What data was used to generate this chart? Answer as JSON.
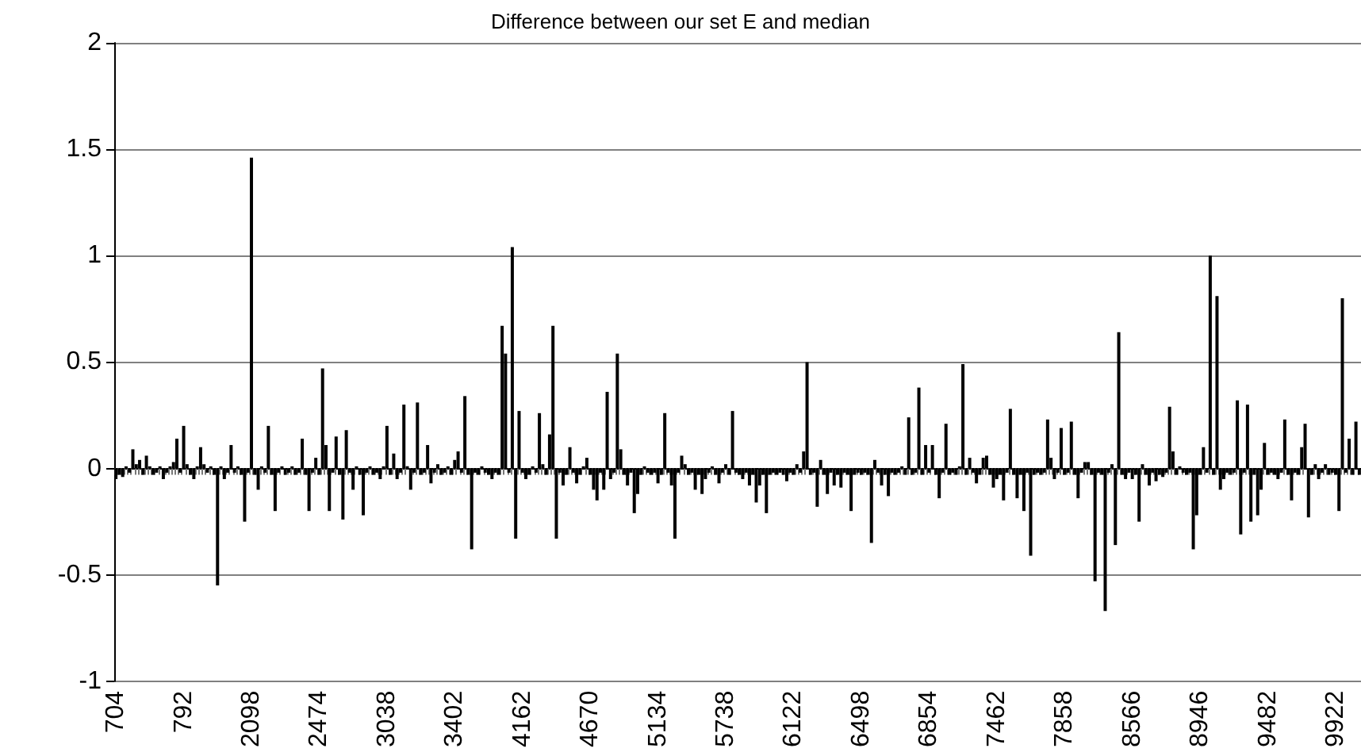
{
  "chart_data": {
    "type": "bar",
    "title": "Difference between our set E and median",
    "categories": [
      "704",
      null,
      null,
      null,
      null,
      null,
      null,
      null,
      null,
      null,
      null,
      null,
      null,
      null,
      null,
      null,
      null,
      null,
      null,
      null,
      "792",
      null,
      null,
      null,
      null,
      null,
      null,
      null,
      null,
      null,
      null,
      null,
      null,
      null,
      null,
      null,
      null,
      null,
      null,
      null,
      "2098",
      null,
      null,
      null,
      null,
      null,
      null,
      null,
      null,
      null,
      null,
      null,
      null,
      null,
      null,
      null,
      null,
      null,
      null,
      null,
      "2474",
      null,
      null,
      null,
      null,
      null,
      null,
      null,
      null,
      null,
      null,
      null,
      null,
      null,
      null,
      null,
      null,
      null,
      null,
      null,
      "3038",
      null,
      null,
      null,
      null,
      null,
      null,
      null,
      null,
      null,
      null,
      null,
      null,
      null,
      null,
      null,
      null,
      null,
      null,
      null,
      "3402",
      null,
      null,
      null,
      null,
      null,
      null,
      null,
      null,
      null,
      null,
      null,
      null,
      null,
      null,
      null,
      null,
      null,
      null,
      null,
      "4162",
      null,
      null,
      null,
      null,
      null,
      null,
      null,
      null,
      null,
      null,
      null,
      null,
      null,
      null,
      null,
      null,
      null,
      null,
      null,
      "4670",
      null,
      null,
      null,
      null,
      null,
      null,
      null,
      null,
      null,
      null,
      null,
      null,
      null,
      null,
      null,
      null,
      null,
      null,
      null,
      "5134",
      null,
      null,
      null,
      null,
      null,
      null,
      null,
      null,
      null,
      null,
      null,
      null,
      null,
      null,
      null,
      null,
      null,
      null,
      null,
      "5738",
      null,
      null,
      null,
      null,
      null,
      null,
      null,
      null,
      null,
      null,
      null,
      null,
      null,
      null,
      null,
      null,
      null,
      null,
      null,
      "6122",
      null,
      null,
      null,
      null,
      null,
      null,
      null,
      null,
      null,
      null,
      null,
      null,
      null,
      null,
      null,
      null,
      null,
      null,
      null,
      "6498",
      null,
      null,
      null,
      null,
      null,
      null,
      null,
      null,
      null,
      null,
      null,
      null,
      null,
      null,
      null,
      null,
      null,
      null,
      null,
      "6854",
      null,
      null,
      null,
      null,
      null,
      null,
      null,
      null,
      null,
      null,
      null,
      null,
      null,
      null,
      null,
      null,
      null,
      null,
      null,
      "7462",
      null,
      null,
      null,
      null,
      null,
      null,
      null,
      null,
      null,
      null,
      null,
      null,
      null,
      null,
      null,
      null,
      null,
      null,
      null,
      "7858",
      null,
      null,
      null,
      null,
      null,
      null,
      null,
      null,
      null,
      null,
      null,
      null,
      null,
      null,
      null,
      null,
      null,
      null,
      null,
      "8566",
      null,
      null,
      null,
      null,
      null,
      null,
      null,
      null,
      null,
      null,
      null,
      null,
      null,
      null,
      null,
      null,
      null,
      null,
      null,
      "8946",
      null,
      null,
      null,
      null,
      null,
      null,
      null,
      null,
      null,
      null,
      null,
      null,
      null,
      null,
      null,
      null,
      null,
      null,
      null,
      "9482",
      null,
      null,
      null,
      null,
      null,
      null,
      null,
      null,
      null,
      null,
      null,
      null,
      null,
      null,
      null,
      null,
      null,
      null,
      null,
      "9922",
      null,
      null,
      null,
      null,
      null,
      null,
      null
    ],
    "values": [
      -0.05,
      -0.03,
      -0.04,
      0.01,
      -0.02,
      0.09,
      0.02,
      0.04,
      -0.03,
      0.06,
      0.01,
      -0.03,
      -0.02,
      0.01,
      -0.05,
      -0.02,
      0.01,
      0.03,
      0.14,
      -0.02,
      0.2,
      0.02,
      -0.03,
      -0.05,
      0.01,
      0.1,
      0.02,
      -0.02,
      0.01,
      -0.03,
      -0.55,
      0.01,
      -0.05,
      -0.02,
      0.11,
      -0.02,
      0.01,
      -0.03,
      -0.25,
      -0.02,
      1.46,
      -0.03,
      -0.1,
      0.01,
      -0.02,
      0.2,
      -0.03,
      -0.2,
      -0.02,
      0.01,
      -0.03,
      -0.02,
      0.01,
      -0.03,
      -0.02,
      0.14,
      -0.03,
      -0.2,
      -0.02,
      0.05,
      -0.03,
      0.47,
      0.11,
      -0.2,
      -0.02,
      0.15,
      -0.03,
      -0.24,
      0.18,
      -0.02,
      -0.1,
      0.01,
      -0.03,
      -0.22,
      -0.02,
      0.01,
      -0.03,
      -0.02,
      -0.05,
      0.01,
      0.2,
      -0.03,
      0.07,
      -0.05,
      -0.02,
      0.3,
      0.01,
      -0.1,
      -0.02,
      0.31,
      -0.03,
      -0.02,
      0.11,
      -0.07,
      -0.02,
      0.02,
      -0.03,
      -0.02,
      0.01,
      -0.03,
      0.04,
      0.08,
      -0.02,
      0.34,
      -0.03,
      -0.38,
      -0.02,
      -0.03,
      0.01,
      -0.02,
      -0.03,
      -0.05,
      -0.02,
      -0.03,
      0.67,
      0.54,
      -0.02,
      1.04,
      -0.33,
      0.27,
      -0.02,
      -0.05,
      -0.03,
      0.01,
      -0.02,
      0.26,
      0.02,
      -0.03,
      0.16,
      0.67,
      -0.33,
      -0.02,
      -0.08,
      -0.03,
      0.1,
      -0.02,
      -0.07,
      -0.03,
      0.01,
      0.05,
      -0.03,
      -0.1,
      -0.15,
      -0.02,
      -0.1,
      0.36,
      -0.05,
      -0.02,
      0.54,
      0.09,
      -0.03,
      -0.08,
      -0.02,
      -0.21,
      -0.12,
      -0.03,
      0.01,
      -0.02,
      -0.03,
      -0.02,
      -0.07,
      -0.03,
      0.26,
      -0.02,
      -0.08,
      -0.33,
      -0.02,
      0.06,
      0.02,
      -0.03,
      -0.02,
      -0.1,
      -0.03,
      -0.12,
      -0.05,
      -0.02,
      0.01,
      -0.03,
      -0.07,
      -0.02,
      0.02,
      -0.03,
      0.27,
      -0.02,
      -0.03,
      -0.05,
      -0.02,
      -0.08,
      -0.03,
      -0.16,
      -0.08,
      -0.03,
      -0.21,
      -0.03,
      -0.02,
      -0.03,
      -0.02,
      -0.03,
      -0.06,
      -0.02,
      -0.03,
      0.02,
      -0.02,
      0.08,
      0.5,
      -0.03,
      -0.02,
      -0.18,
      0.04,
      -0.03,
      -0.12,
      -0.02,
      -0.08,
      -0.03,
      -0.09,
      -0.02,
      -0.03,
      -0.2,
      -0.03,
      -0.02,
      -0.03,
      -0.02,
      -0.03,
      -0.35,
      0.04,
      -0.02,
      -0.08,
      -0.03,
      -0.13,
      -0.02,
      -0.03,
      -0.02,
      0.01,
      -0.03,
      0.24,
      -0.03,
      -0.02,
      0.38,
      -0.03,
      0.11,
      -0.02,
      0.11,
      -0.03,
      -0.14,
      -0.02,
      0.21,
      -0.03,
      -0.02,
      -0.03,
      0.01,
      0.49,
      -0.03,
      0.05,
      -0.02,
      -0.07,
      -0.03,
      0.05,
      0.06,
      -0.03,
      -0.09,
      -0.05,
      -0.03,
      -0.15,
      -0.02,
      0.28,
      -0.03,
      -0.14,
      -0.03,
      -0.2,
      -0.02,
      -0.41,
      -0.03,
      -0.02,
      -0.03,
      -0.02,
      0.23,
      0.05,
      -0.05,
      -0.02,
      0.19,
      -0.03,
      -0.02,
      0.22,
      -0.03,
      -0.14,
      -0.02,
      0.03,
      0.03,
      -0.03,
      -0.53,
      -0.02,
      -0.03,
      -0.67,
      -0.02,
      0.02,
      -0.36,
      0.64,
      -0.03,
      -0.05,
      -0.02,
      -0.05,
      -0.03,
      -0.25,
      0.02,
      -0.03,
      -0.08,
      -0.02,
      -0.06,
      -0.03,
      -0.04,
      -0.02,
      0.29,
      0.08,
      -0.03,
      0.01,
      -0.02,
      -0.03,
      -0.02,
      -0.38,
      -0.22,
      -0.03,
      0.1,
      -0.02,
      1.0,
      -0.03,
      0.81,
      -0.1,
      -0.05,
      -0.02,
      -0.03,
      -0.02,
      0.32,
      -0.31,
      -0.02,
      0.3,
      -0.25,
      -0.03,
      -0.22,
      -0.1,
      0.12,
      -0.03,
      -0.02,
      -0.03,
      -0.05,
      -0.02,
      0.23,
      -0.03,
      -0.15,
      -0.02,
      -0.03,
      0.1,
      0.21,
      -0.23,
      -0.03,
      0.02,
      -0.05,
      -0.02,
      0.02,
      -0.03,
      -0.02,
      -0.03,
      -0.2,
      0.8,
      -0.02,
      0.14,
      -0.03,
      0.22,
      -0.03
    ],
    "color": "#000000",
    "ylim": [
      -1,
      2
    ],
    "yticks": [
      -1,
      -0.5,
      0,
      0.5,
      1,
      1.5,
      2
    ],
    "grid": "y"
  }
}
